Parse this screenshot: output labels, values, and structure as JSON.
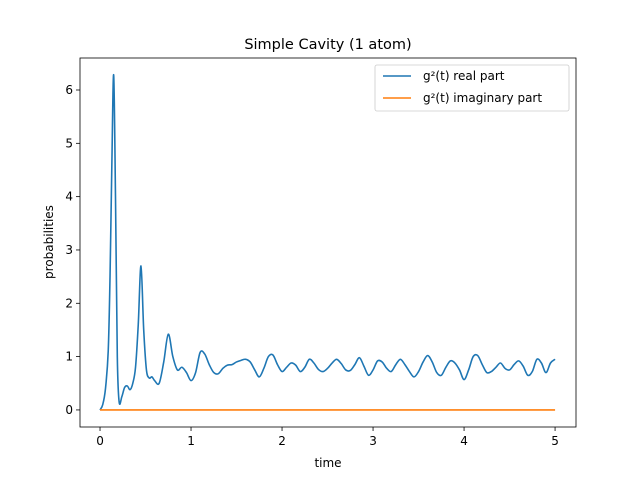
{
  "chart_data": {
    "type": "line",
    "title": "Simple Cavity (1 atom)",
    "xlabel": "time",
    "ylabel": "probabilities",
    "xlim": [
      -0.22,
      5.23
    ],
    "ylim": [
      -0.32,
      6.6
    ],
    "xticks": [
      0,
      1,
      2,
      3,
      4,
      5
    ],
    "yticks": [
      0,
      1,
      2,
      3,
      4,
      5,
      6
    ],
    "grid": false,
    "legend_position": "top-right",
    "series": [
      {
        "name": "g²(t) real part",
        "color": "#1f77b4",
        "x": [
          0.0,
          0.03,
          0.06,
          0.09,
          0.11,
          0.13,
          0.15,
          0.17,
          0.19,
          0.21,
          0.24,
          0.27,
          0.3,
          0.33,
          0.36,
          0.39,
          0.42,
          0.45,
          0.48,
          0.51,
          0.54,
          0.57,
          0.6,
          0.65,
          0.7,
          0.75,
          0.8,
          0.85,
          0.9,
          0.95,
          1.0,
          1.05,
          1.1,
          1.15,
          1.2,
          1.25,
          1.3,
          1.35,
          1.4,
          1.45,
          1.5,
          1.55,
          1.6,
          1.65,
          1.7,
          1.75,
          1.8,
          1.85,
          1.9,
          1.95,
          2.0,
          2.05,
          2.1,
          2.15,
          2.2,
          2.25,
          2.3,
          2.35,
          2.4,
          2.45,
          2.5,
          2.55,
          2.6,
          2.65,
          2.7,
          2.75,
          2.8,
          2.85,
          2.9,
          2.95,
          3.0,
          3.05,
          3.1,
          3.15,
          3.2,
          3.25,
          3.3,
          3.35,
          3.4,
          3.45,
          3.5,
          3.55,
          3.6,
          3.65,
          3.7,
          3.75,
          3.8,
          3.85,
          3.9,
          3.95,
          4.0,
          4.05,
          4.1,
          4.15,
          4.2,
          4.25,
          4.3,
          4.35,
          4.4,
          4.45,
          4.5,
          4.55,
          4.6,
          4.65,
          4.7,
          4.75,
          4.8,
          4.85,
          4.9,
          4.95,
          5.0
        ],
        "y": [
          0.0,
          0.1,
          0.4,
          1.1,
          2.5,
          4.6,
          6.28,
          4.0,
          1.0,
          0.15,
          0.25,
          0.42,
          0.45,
          0.38,
          0.5,
          0.8,
          1.6,
          2.7,
          1.5,
          0.75,
          0.6,
          0.62,
          0.55,
          0.5,
          0.9,
          1.42,
          1.0,
          0.75,
          0.8,
          0.7,
          0.55,
          0.7,
          1.08,
          1.05,
          0.85,
          0.7,
          0.68,
          0.78,
          0.84,
          0.85,
          0.9,
          0.93,
          0.95,
          0.9,
          0.75,
          0.62,
          0.78,
          1.0,
          1.03,
          0.85,
          0.72,
          0.8,
          0.88,
          0.84,
          0.72,
          0.8,
          0.95,
          0.88,
          0.76,
          0.72,
          0.78,
          0.88,
          0.95,
          0.87,
          0.75,
          0.74,
          0.85,
          0.98,
          0.82,
          0.65,
          0.75,
          0.92,
          0.9,
          0.78,
          0.72,
          0.85,
          0.95,
          0.85,
          0.72,
          0.62,
          0.72,
          0.9,
          1.02,
          0.9,
          0.7,
          0.65,
          0.8,
          0.92,
          0.88,
          0.75,
          0.57,
          0.75,
          1.0,
          1.02,
          0.85,
          0.7,
          0.72,
          0.8,
          0.88,
          0.78,
          0.75,
          0.85,
          0.92,
          0.82,
          0.65,
          0.72,
          0.95,
          0.88,
          0.7,
          0.88,
          0.95
        ]
      },
      {
        "name": "g²(t) imaginary part",
        "color": "#ff7f0e",
        "x": [
          0.0,
          5.0
        ],
        "y": [
          0.0,
          0.0
        ]
      }
    ]
  }
}
